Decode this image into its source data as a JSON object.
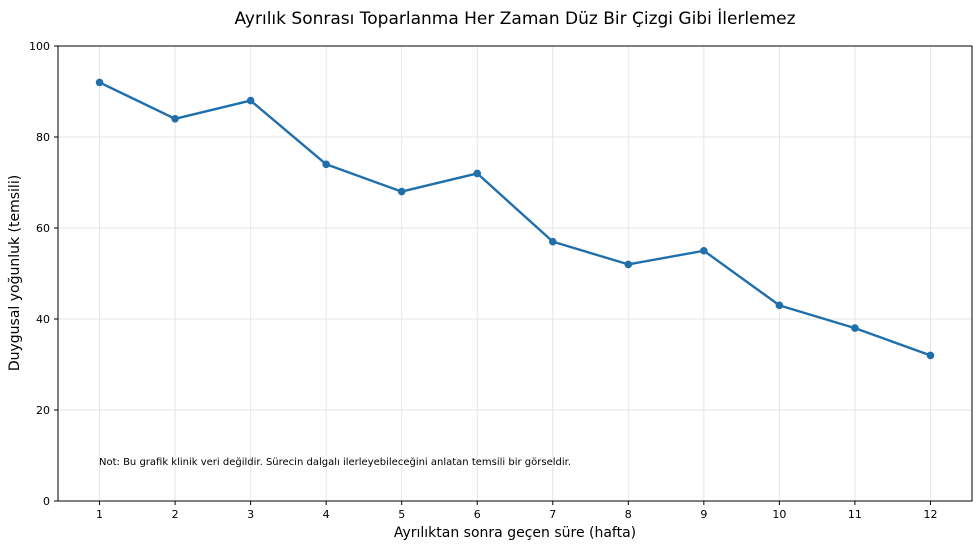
{
  "chart_data": {
    "type": "line",
    "title": "Ayrılık Sonrası Toparlanma Her Zaman Düz Bir Çizgi Gibi İlerlemez",
    "xlabel": "Ayrılıktan sonra geçen süre (hafta)",
    "ylabel": "Duygusal yoğunluk (temsili)",
    "x": [
      1,
      2,
      3,
      4,
      5,
      6,
      7,
      8,
      9,
      10,
      11,
      12
    ],
    "series": [
      {
        "values": [
          92,
          84,
          88,
          74,
          68,
          72,
          57,
          52,
          55,
          43,
          38,
          32
        ],
        "color": "#1f6fad"
      }
    ],
    "xticks": [
      "1",
      "2",
      "3",
      "4",
      "5",
      "6",
      "7",
      "8",
      "9",
      "10",
      "11",
      "12"
    ],
    "yticks": [
      "0",
      "20",
      "40",
      "60",
      "80",
      "100"
    ],
    "xlim": [
      0.45,
      12.55
    ],
    "ylim": [
      0,
      100
    ],
    "grid": true,
    "annotation": "Not: Bu grafik klinik veri değildir. Sürecin dalgalı ilerleyebileceğini anlatan temsili bir görseldir."
  }
}
